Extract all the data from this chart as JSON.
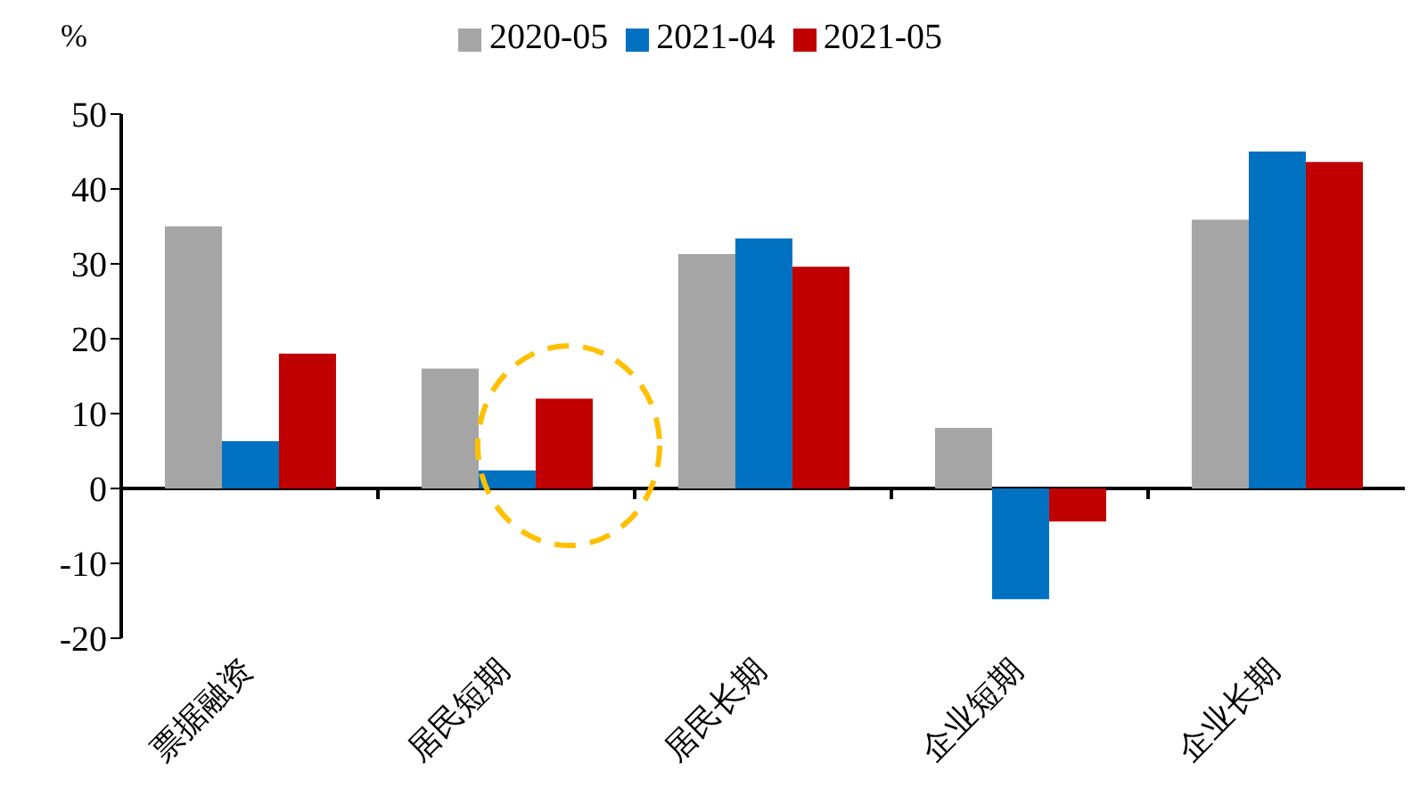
{
  "chart_data": {
    "type": "bar",
    "ylabel": "%",
    "categories": [
      "票据融资",
      "居民短期",
      "居民长期",
      "企业短期",
      "企业长期"
    ],
    "series": [
      {
        "name": "2020-05",
        "color": "#a5a5a5",
        "values": [
          35,
          16,
          31.3,
          8.1,
          35.9
        ]
      },
      {
        "name": "2021-04",
        "color": "#0070c0",
        "values": [
          6.3,
          2.4,
          33.4,
          -14.8,
          45
        ]
      },
      {
        "name": "2021-05",
        "color": "#c00000",
        "values": [
          18,
          12,
          29.6,
          -4.4,
          43.6
        ]
      }
    ],
    "ylim": [
      -20,
      50
    ],
    "yticks": [
      -20,
      -10,
      0,
      10,
      20,
      30,
      40,
      50
    ],
    "legend": "top"
  }
}
